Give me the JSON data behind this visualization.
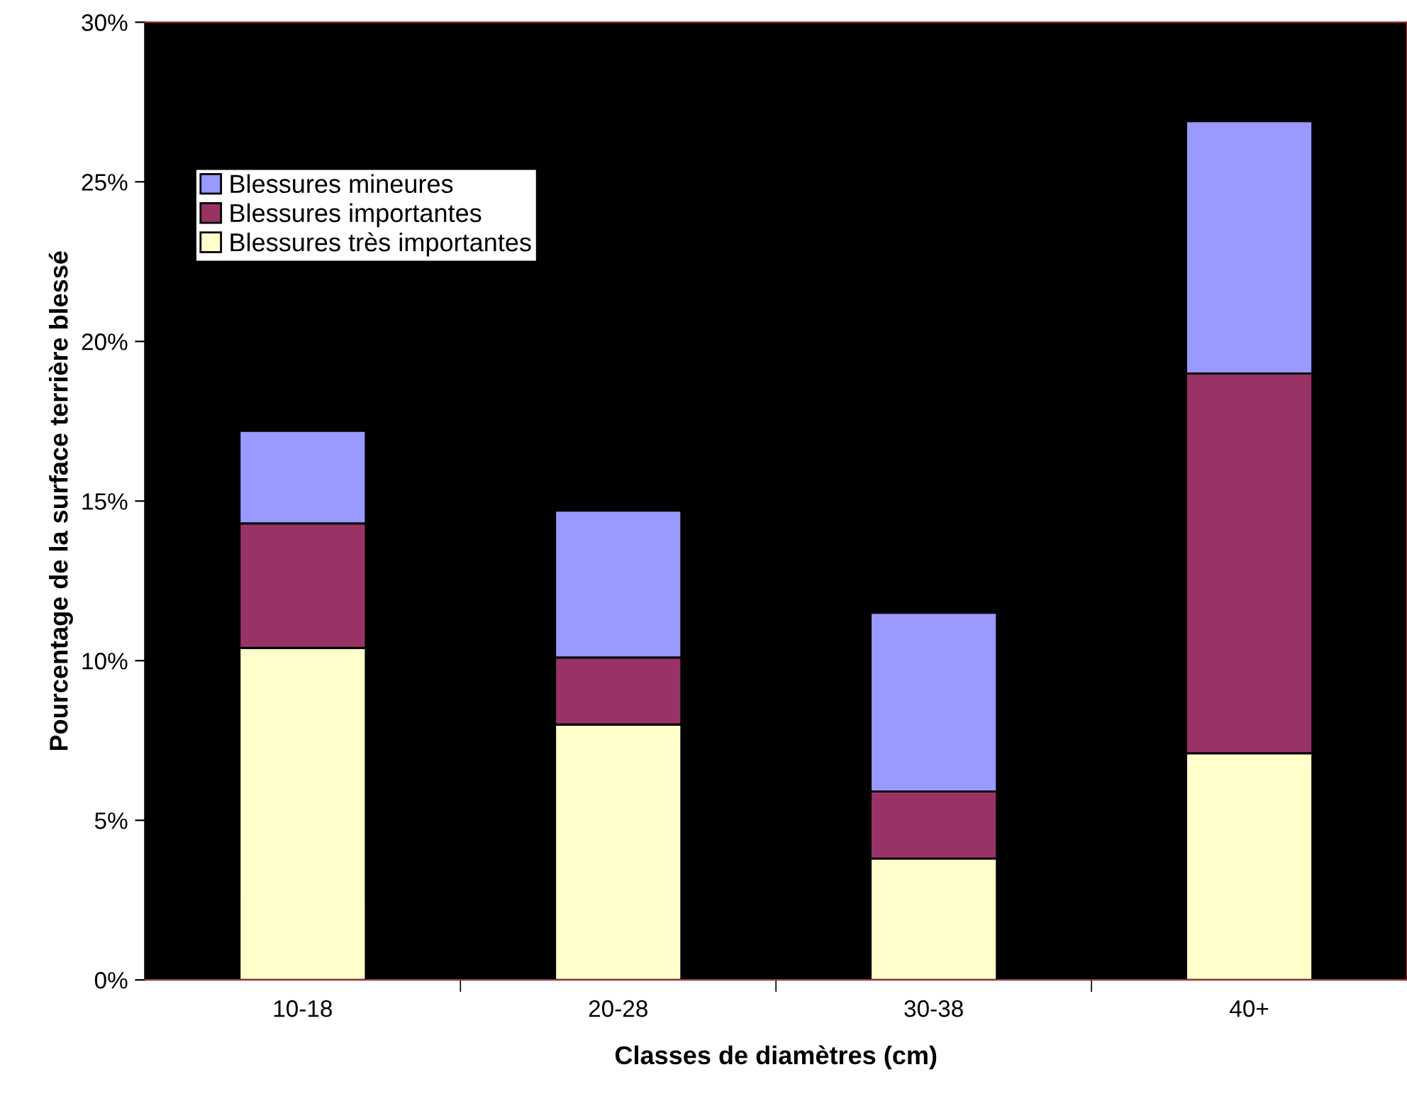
{
  "chart_data": {
    "type": "bar",
    "stacked": true,
    "xlabel": "Classes de diamètres (cm)",
    "ylabel": "Pourcentage de la surface terrière blessé",
    "categories": [
      "10-18",
      "20-28",
      "30-38",
      "40+"
    ],
    "series": [
      {
        "name": "Blessures très importantes",
        "color": "#ffffcc",
        "values": [
          10.4,
          8.0,
          3.8,
          7.1
        ]
      },
      {
        "name": "Blessures importantes",
        "color": "#993366",
        "values": [
          3.9,
          2.1,
          2.1,
          11.9
        ]
      },
      {
        "name": "Blessures mineures",
        "color": "#9999ff",
        "values": [
          2.9,
          4.6,
          5.6,
          7.9
        ]
      }
    ],
    "ylim": [
      0,
      30
    ],
    "yticks": [
      {
        "value": 0,
        "label": "0%"
      },
      {
        "value": 5,
        "label": "5%"
      },
      {
        "value": 10,
        "label": "10%"
      },
      {
        "value": 15,
        "label": "15%"
      },
      {
        "value": 20,
        "label": "20%"
      },
      {
        "value": 25,
        "label": "25%"
      },
      {
        "value": 30,
        "label": "30%"
      }
    ],
    "grid": false,
    "legend": "top left"
  }
}
